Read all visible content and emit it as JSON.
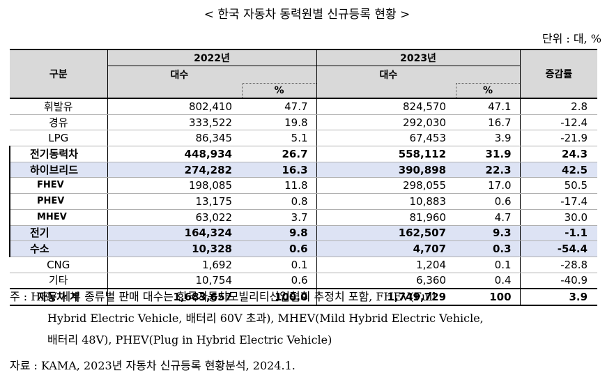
{
  "title": "< 한국 자동차 동력원별 신규등록 현황 >",
  "unit": "단위 : 대, %",
  "headers": {
    "category": "구분",
    "year1": "2022년",
    "year2": "2023년",
    "count": "대수",
    "pct": "%",
    "change": "증감률"
  },
  "rows": [
    {
      "cat": "휘발유",
      "c22": "802,410",
      "p22": "47.7",
      "c23": "824,570",
      "p23": "47.1",
      "chg": "2.8"
    },
    {
      "cat": "경유",
      "c22": "333,522",
      "p22": "19.8",
      "c23": "292,030",
      "p23": "16.7",
      "chg": "-12.4"
    },
    {
      "cat": "LPG",
      "c22": "86,345",
      "p22": "5.1",
      "c23": "67,453",
      "p23": "3.9",
      "chg": "-21.9"
    },
    {
      "cat": "전기동력차",
      "c22": "448,934",
      "p22": "26.7",
      "c23": "558,112",
      "p23": "31.9",
      "chg": "24.3"
    },
    {
      "cat": "하이브리드",
      "c22": "274,282",
      "p22": "16.3",
      "c23": "390,898",
      "p23": "22.3",
      "chg": "42.5"
    },
    {
      "cat": "FHEV",
      "c22": "198,085",
      "p22": "11.8",
      "c23": "298,055",
      "p23": "17.0",
      "chg": "50.5"
    },
    {
      "cat": "PHEV",
      "c22": "13,175",
      "p22": "0.8",
      "c23": "10,883",
      "p23": "0.6",
      "chg": "-17.4"
    },
    {
      "cat": "MHEV",
      "c22": "63,022",
      "p22": "3.7",
      "c23": "81,960",
      "p23": "4.7",
      "chg": "30.0"
    },
    {
      "cat": "전기",
      "c22": "164,324",
      "p22": "9.8",
      "c23": "162,507",
      "p23": "9.3",
      "chg": "-1.1"
    },
    {
      "cat": "수소",
      "c22": "10,328",
      "p22": "0.6",
      "c23": "4,707",
      "p23": "0.3",
      "chg": "-54.4"
    },
    {
      "cat": "CNG",
      "c22": "1,692",
      "p22": "0.1",
      "c23": "1,204",
      "p23": "0.1",
      "chg": "-28.8"
    },
    {
      "cat": "기타",
      "c22": "10,754",
      "p22": "0.6",
      "c23": "6,360",
      "p23": "0.4",
      "chg": "-40.9"
    },
    {
      "cat": "자동차 계",
      "c22": "1,683,657",
      "p22": "100.0",
      "c23": "1,749,729",
      "p23": "100",
      "chg": "3.9"
    }
  ],
  "notes": {
    "note_line1": "주 : HEV 세부 종류별 판매 대수는 한국자동차모빌리티산업협회 추정치 포함, FHEV(Full",
    "note_line2": "Hybrid Electric Vehicle, 배터리 60V 초과), MHEV(Mild Hybrid Electric Vehicle,",
    "note_line3": "배터리 48V), PHEV(Plug in Hybrid Electric Vehicle)",
    "source": "자료 : KAMA, 2023년 자동차 신규등록 현황분석, 2024.1."
  }
}
